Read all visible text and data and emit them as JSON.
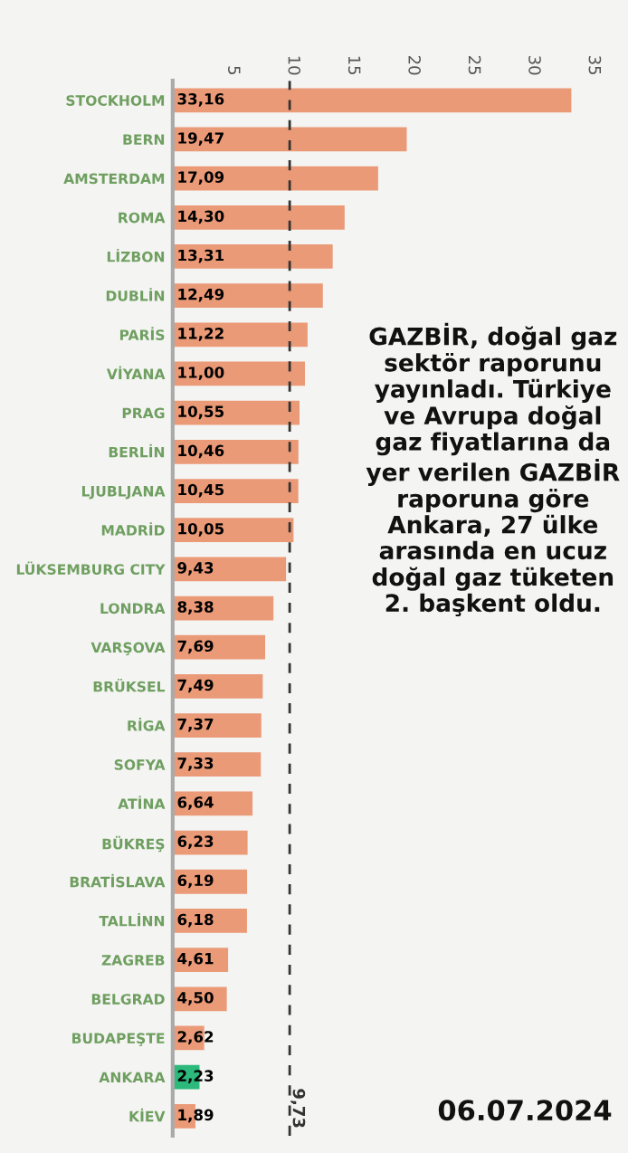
{
  "chart_data": {
    "type": "bar",
    "orientation": "horizontal",
    "categories": [
      "STOCKHOLM",
      "BERN",
      "AMSTERDAM",
      "ROMA",
      "LİZBON",
      "DUBLİN",
      "PARİS",
      "VİYANA",
      "PRAG",
      "BERLİN",
      "LJUBLJANA",
      "MADRİD",
      "LÜKSEMBURG CITY",
      "LONDRA",
      "VARŞOVA",
      "BRÜKSEL",
      "RİGA",
      "SOFYA",
      "ATİNA",
      "BÜKREŞ",
      "BRATİSLAVA",
      "TALLİNN",
      "ZAGREB",
      "BELGRAD",
      "BUDAPEŞTE",
      "ANKARA",
      "KİEV"
    ],
    "values": [
      33.16,
      19.47,
      17.09,
      14.3,
      13.31,
      12.49,
      11.22,
      11.0,
      10.55,
      10.46,
      10.45,
      10.05,
      9.43,
      8.38,
      7.69,
      7.49,
      7.37,
      7.33,
      6.64,
      6.23,
      6.19,
      6.18,
      4.61,
      4.5,
      2.62,
      2.23,
      1.89
    ],
    "value_labels": [
      "33,16",
      "19,47",
      "17,09",
      "14,30",
      "13,31",
      "12,49",
      "11,22",
      "11,00",
      "10,55",
      "10,46",
      "10,45",
      "10,05",
      "9,43",
      "8,38",
      "7,69",
      "7,49",
      "7,37",
      "7,33",
      "6,64",
      "6,23",
      "6,19",
      "6,18",
      "4,61",
      "4,50",
      "2,62",
      "2,23",
      "1,89"
    ],
    "colors": [
      "#eb9a78",
      "#eb9a78",
      "#eb9a78",
      "#eb9a78",
      "#eb9a78",
      "#eb9a78",
      "#eb9a78",
      "#eb9a78",
      "#eb9a78",
      "#eb9a78",
      "#eb9a78",
      "#eb9a78",
      "#eb9a78",
      "#eb9a78",
      "#eb9a78",
      "#eb9a78",
      "#eb9a78",
      "#eb9a78",
      "#eb9a78",
      "#eb9a78",
      "#eb9a78",
      "#eb9a78",
      "#eb9a78",
      "#eb9a78",
      "#eb9a78",
      "#2db87c",
      "#eb9a78"
    ],
    "xlim": [
      0,
      35
    ],
    "xticks": [
      5,
      10,
      15,
      20,
      25,
      30,
      35
    ],
    "ref_lines": [
      {
        "axis": "x",
        "value": 9.73,
        "label": "9,73",
        "color": "#333333",
        "line_style": "dashed"
      }
    ],
    "annotations": [
      "GAZBİR, doğal gaz sektör raporunu yayınladı. Türkiye ve Avrupa doğal gaz fiyatlarına da yer verilen GAZBİR raporuna göre Ankara, 27 ülke arasında en ucuz doğal gaz tüketen 2. başkent oldu.",
      "06.07.2024"
    ],
    "grid": false,
    "legend": false
  }
}
